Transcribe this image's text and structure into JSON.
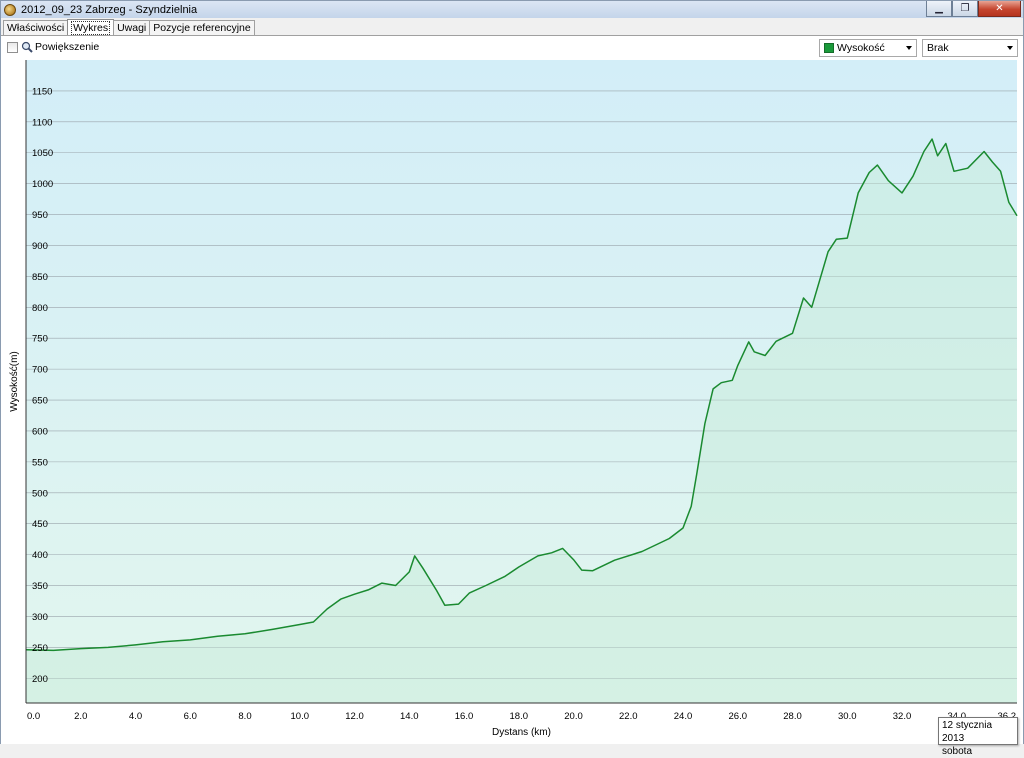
{
  "window": {
    "title": "2012_09_23 Zabrzeg - Szyndzielnia",
    "minimize_glyph": "▁",
    "maximize_glyph": "❐",
    "close_glyph": "✕"
  },
  "tabs": [
    {
      "label": "Właściwości",
      "active": false
    },
    {
      "label": "Wykres",
      "active": true
    },
    {
      "label": "Uwagi",
      "active": false
    },
    {
      "label": "Pozycje referencyjne",
      "active": false
    }
  ],
  "toolbar": {
    "zoom_label": "Powiększenie",
    "zoom_checked": false,
    "series_select": "Wysokość",
    "series_color": "#1a9a3a",
    "secondary_select": "Brak"
  },
  "tooltip": {
    "line1": "12 stycznia 2013",
    "line2": "sobota"
  },
  "chart_data": {
    "type": "area",
    "xlabel": "Dystans (km)",
    "ylabel": "Wysokość(m)",
    "xlim": [
      0,
      36.2
    ],
    "ylim": [
      160,
      1200
    ],
    "x_ticks": [
      "0.0",
      "2.0",
      "4.0",
      "6.0",
      "8.0",
      "10.0",
      "12.0",
      "14.0",
      "16.0",
      "18.0",
      "20.0",
      "22.0",
      "24.0",
      "26.0",
      "28.0",
      "30.0",
      "32.0",
      "34.0",
      "36.2"
    ],
    "y_ticks": [
      200,
      250,
      300,
      350,
      400,
      450,
      500,
      550,
      600,
      650,
      700,
      750,
      800,
      850,
      900,
      950,
      1000,
      1050,
      1100,
      1150
    ],
    "grid": true,
    "line_color": "#1a8a30",
    "series": [
      {
        "x": [
          0,
          1,
          2,
          3,
          4,
          5,
          6,
          7,
          8,
          9,
          10,
          10.5,
          11,
          11.5,
          12,
          12.5,
          13,
          13.5,
          14,
          14.2,
          14.5,
          15,
          15.3,
          15.8,
          16.2,
          16.8,
          17.5,
          18,
          18.7,
          19.2,
          19.6,
          20,
          20.3,
          20.7,
          21.5,
          22.5,
          23.5,
          24,
          24.3,
          24.5,
          24.8,
          25.1,
          25.4,
          25.8,
          26,
          26.4,
          26.6,
          27,
          27.4,
          28,
          28.4,
          28.7,
          29.3,
          29.6,
          30,
          30.4,
          30.8,
          31.1,
          31.5,
          32,
          32.4,
          32.8,
          33.1,
          33.3,
          33.6,
          33.9,
          34.4,
          35,
          35.3,
          35.6,
          35.9,
          36.2
        ],
        "y": [
          246,
          245,
          248,
          250,
          254,
          259,
          262,
          268,
          272,
          279,
          287,
          291,
          312,
          328,
          336,
          343,
          354,
          350,
          372,
          398,
          378,
          342,
          318,
          320,
          338,
          350,
          365,
          380,
          398,
          403,
          410,
          392,
          375,
          374,
          391,
          405,
          426,
          443,
          478,
          530,
          612,
          668,
          678,
          682,
          706,
          744,
          728,
          722,
          745,
          758,
          815,
          800,
          890,
          910,
          912,
          985,
          1018,
          1030,
          1005,
          985,
          1012,
          1052,
          1072,
          1045,
          1065,
          1020,
          1025,
          1052,
          1035,
          1020,
          970,
          948
        ]
      }
    ]
  }
}
